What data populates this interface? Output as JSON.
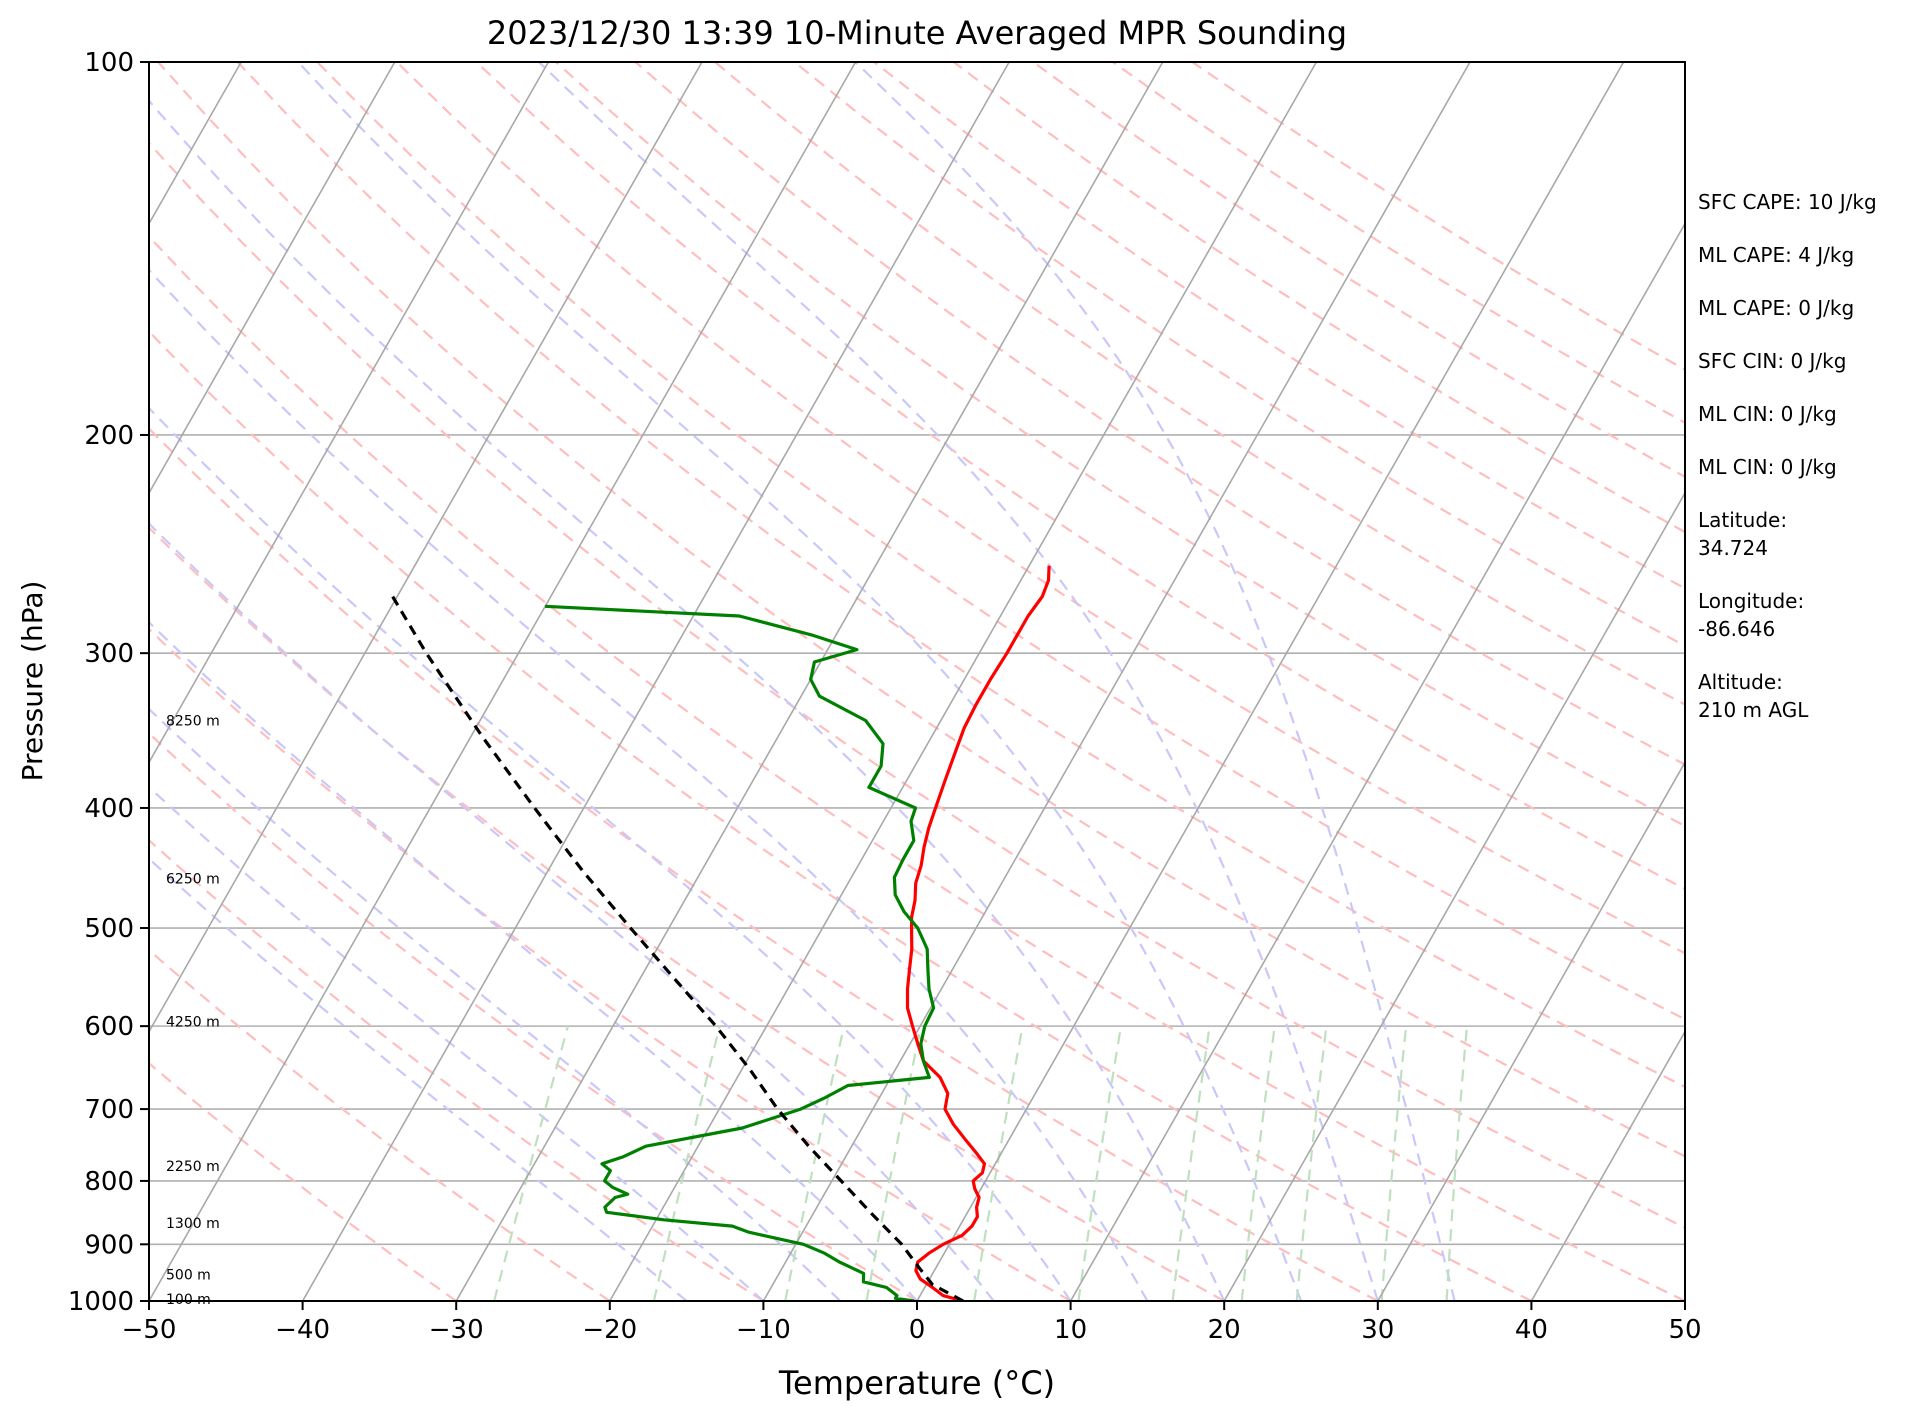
{
  "chart_data": {
    "type": "line",
    "title": "2023/12/30 13:39 10-Minute Averaged MPR Sounding",
    "xlabel": "Temperature (°C)",
    "ylabel": "Pressure (hPa)",
    "xlim": [
      -50,
      50
    ],
    "ylim": [
      1000,
      100
    ],
    "yscale": "log",
    "x_ticks": [
      "−50",
      "−40",
      "−30",
      "−20",
      "−10",
      "0",
      "10",
      "20",
      "30",
      "40",
      "50"
    ],
    "y_ticks": [
      {
        "p": 100,
        "label": "100"
      },
      {
        "p": 200,
        "label": "200"
      },
      {
        "p": 300,
        "label": "300"
      },
      {
        "p": 400,
        "label": "400"
      },
      {
        "p": 500,
        "label": "500"
      },
      {
        "p": 600,
        "label": "600"
      },
      {
        "p": 700,
        "label": "700"
      },
      {
        "p": 800,
        "label": "800"
      },
      {
        "p": 900,
        "label": "900"
      },
      {
        "p": 1000,
        "label": "1000"
      }
    ],
    "height_labels": [
      {
        "p": 996,
        "label": "100 m"
      },
      {
        "p": 952,
        "label": "500 m"
      },
      {
        "p": 865,
        "label": "1300 m"
      },
      {
        "p": 778,
        "label": "2250 m"
      },
      {
        "p": 595,
        "label": "4250 m"
      },
      {
        "p": 456,
        "label": "6250 m"
      },
      {
        "p": 340,
        "label": "8250 m"
      }
    ],
    "colors": {
      "temperature": "#ff0000",
      "dewpoint": "#008000",
      "parcel": "#000000",
      "isotherm": "#a8a8a8",
      "dry_adiabat": "#ffbdbd",
      "moist_adiabat": "#c8c8fa",
      "mixing_ratio": "#bfe0bf",
      "grid": "#b0b0b0"
    },
    "series": [
      {
        "key": "temperature",
        "points": [
          [
            1000,
            3.0
          ],
          [
            990,
            1.5
          ],
          [
            975,
            0.5
          ],
          [
            960,
            -0.6
          ],
          [
            945,
            -1.2
          ],
          [
            930,
            -1.4
          ],
          [
            915,
            -1.0
          ],
          [
            900,
            -0.4
          ],
          [
            885,
            0.5
          ],
          [
            870,
            0.8
          ],
          [
            855,
            0.8
          ],
          [
            840,
            0.4
          ],
          [
            825,
            0.2
          ],
          [
            812,
            -0.4
          ],
          [
            800,
            -0.8
          ],
          [
            788,
            -0.5
          ],
          [
            775,
            -0.7
          ],
          [
            760,
            -1.6
          ],
          [
            740,
            -2.9
          ],
          [
            720,
            -4.2
          ],
          [
            700,
            -5.3
          ],
          [
            680,
            -5.7
          ],
          [
            660,
            -6.8
          ],
          [
            640,
            -8.5
          ],
          [
            620,
            -9.5
          ],
          [
            600,
            -10.5
          ],
          [
            580,
            -11.5
          ],
          [
            560,
            -12.2
          ],
          [
            540,
            -12.8
          ],
          [
            520,
            -13.4
          ],
          [
            505,
            -14.0
          ],
          [
            490,
            -14.6
          ],
          [
            475,
            -15.0
          ],
          [
            460,
            -15.6
          ],
          [
            445,
            -15.9
          ],
          [
            430,
            -16.4
          ],
          [
            415,
            -16.8
          ],
          [
            400,
            -17.1
          ],
          [
            380,
            -17.5
          ],
          [
            360,
            -17.9
          ],
          [
            345,
            -18.2
          ],
          [
            330,
            -18.3
          ],
          [
            315,
            -18.3
          ],
          [
            300,
            -18.2
          ],
          [
            290,
            -18.2
          ],
          [
            280,
            -18.2
          ],
          [
            270,
            -18.0
          ],
          [
            262,
            -18.2
          ],
          [
            255,
            -18.7
          ]
        ]
      },
      {
        "key": "dewpoint",
        "points": [
          [
            1000,
            -0.2
          ],
          [
            995,
            -1.5
          ],
          [
            990,
            -1.5
          ],
          [
            975,
            -2.5
          ],
          [
            965,
            -4.2
          ],
          [
            950,
            -4.5
          ],
          [
            940,
            -5.5
          ],
          [
            930,
            -6.5
          ],
          [
            915,
            -7.8
          ],
          [
            900,
            -9.5
          ],
          [
            880,
            -13.5
          ],
          [
            870,
            -14.8
          ],
          [
            860,
            -19.5
          ],
          [
            848,
            -23.5
          ],
          [
            840,
            -23.8
          ],
          [
            825,
            -23.5
          ],
          [
            820,
            -22.8
          ],
          [
            810,
            -24.0
          ],
          [
            800,
            -24.8
          ],
          [
            785,
            -24.8
          ],
          [
            775,
            -25.6
          ],
          [
            765,
            -24.5
          ],
          [
            750,
            -23.4
          ],
          [
            725,
            -17.8
          ],
          [
            700,
            -14.7
          ],
          [
            685,
            -13.5
          ],
          [
            670,
            -12.5
          ],
          [
            660,
            -7.5
          ],
          [
            640,
            -8.5
          ],
          [
            620,
            -9.3
          ],
          [
            600,
            -9.7
          ],
          [
            580,
            -9.8
          ],
          [
            560,
            -10.8
          ],
          [
            540,
            -11.6
          ],
          [
            520,
            -12.4
          ],
          [
            500,
            -13.8
          ],
          [
            485,
            -15.3
          ],
          [
            470,
            -16.5
          ],
          [
            455,
            -17.2
          ],
          [
            440,
            -17.3
          ],
          [
            425,
            -17.3
          ],
          [
            410,
            -18.2
          ],
          [
            400,
            -18.4
          ],
          [
            385,
            -22.2
          ],
          [
            370,
            -22.2
          ],
          [
            355,
            -22.9
          ],
          [
            340,
            -24.9
          ],
          [
            325,
            -28.8
          ],
          [
            315,
            -30.0
          ],
          [
            305,
            -30.4
          ],
          [
            298,
            -28.1
          ],
          [
            290,
            -31.6
          ],
          [
            280,
            -37.0
          ],
          [
            275,
            -50.0
          ]
        ]
      },
      {
        "key": "parcel",
        "points": [
          [
            1000,
            3.0
          ],
          [
            970,
            0.4
          ],
          [
            940,
            -1.1
          ],
          [
            900,
            -3.1
          ],
          [
            850,
            -6.2
          ],
          [
            800,
            -9.4
          ],
          [
            750,
            -12.8
          ],
          [
            700,
            -16.2
          ],
          [
            650,
            -19.5
          ],
          [
            600,
            -23.3
          ],
          [
            550,
            -27.7
          ],
          [
            500,
            -32.5
          ],
          [
            450,
            -37.7
          ],
          [
            400,
            -43.2
          ],
          [
            350,
            -49.3
          ],
          [
            300,
            -56.0
          ],
          [
            270,
            -60.3
          ]
        ]
      }
    ]
  },
  "info_panel": [
    {
      "label": "SFC CAPE: 10 J/kg"
    },
    {
      "label": "ML CAPE: 4 J/kg"
    },
    {
      "label": "ML CAPE: 0 J/kg"
    },
    {
      "label": "SFC CIN: 0 J/kg"
    },
    {
      "label": "ML CIN: 0 J/kg"
    },
    {
      "label": "ML CIN: 0 J/kg"
    },
    {
      "label": "Latitude:",
      "value": "34.724"
    },
    {
      "label": "Longitude:",
      "value": "-86.646"
    },
    {
      "label": "Altitude:",
      "value": "210 m AGL"
    }
  ]
}
